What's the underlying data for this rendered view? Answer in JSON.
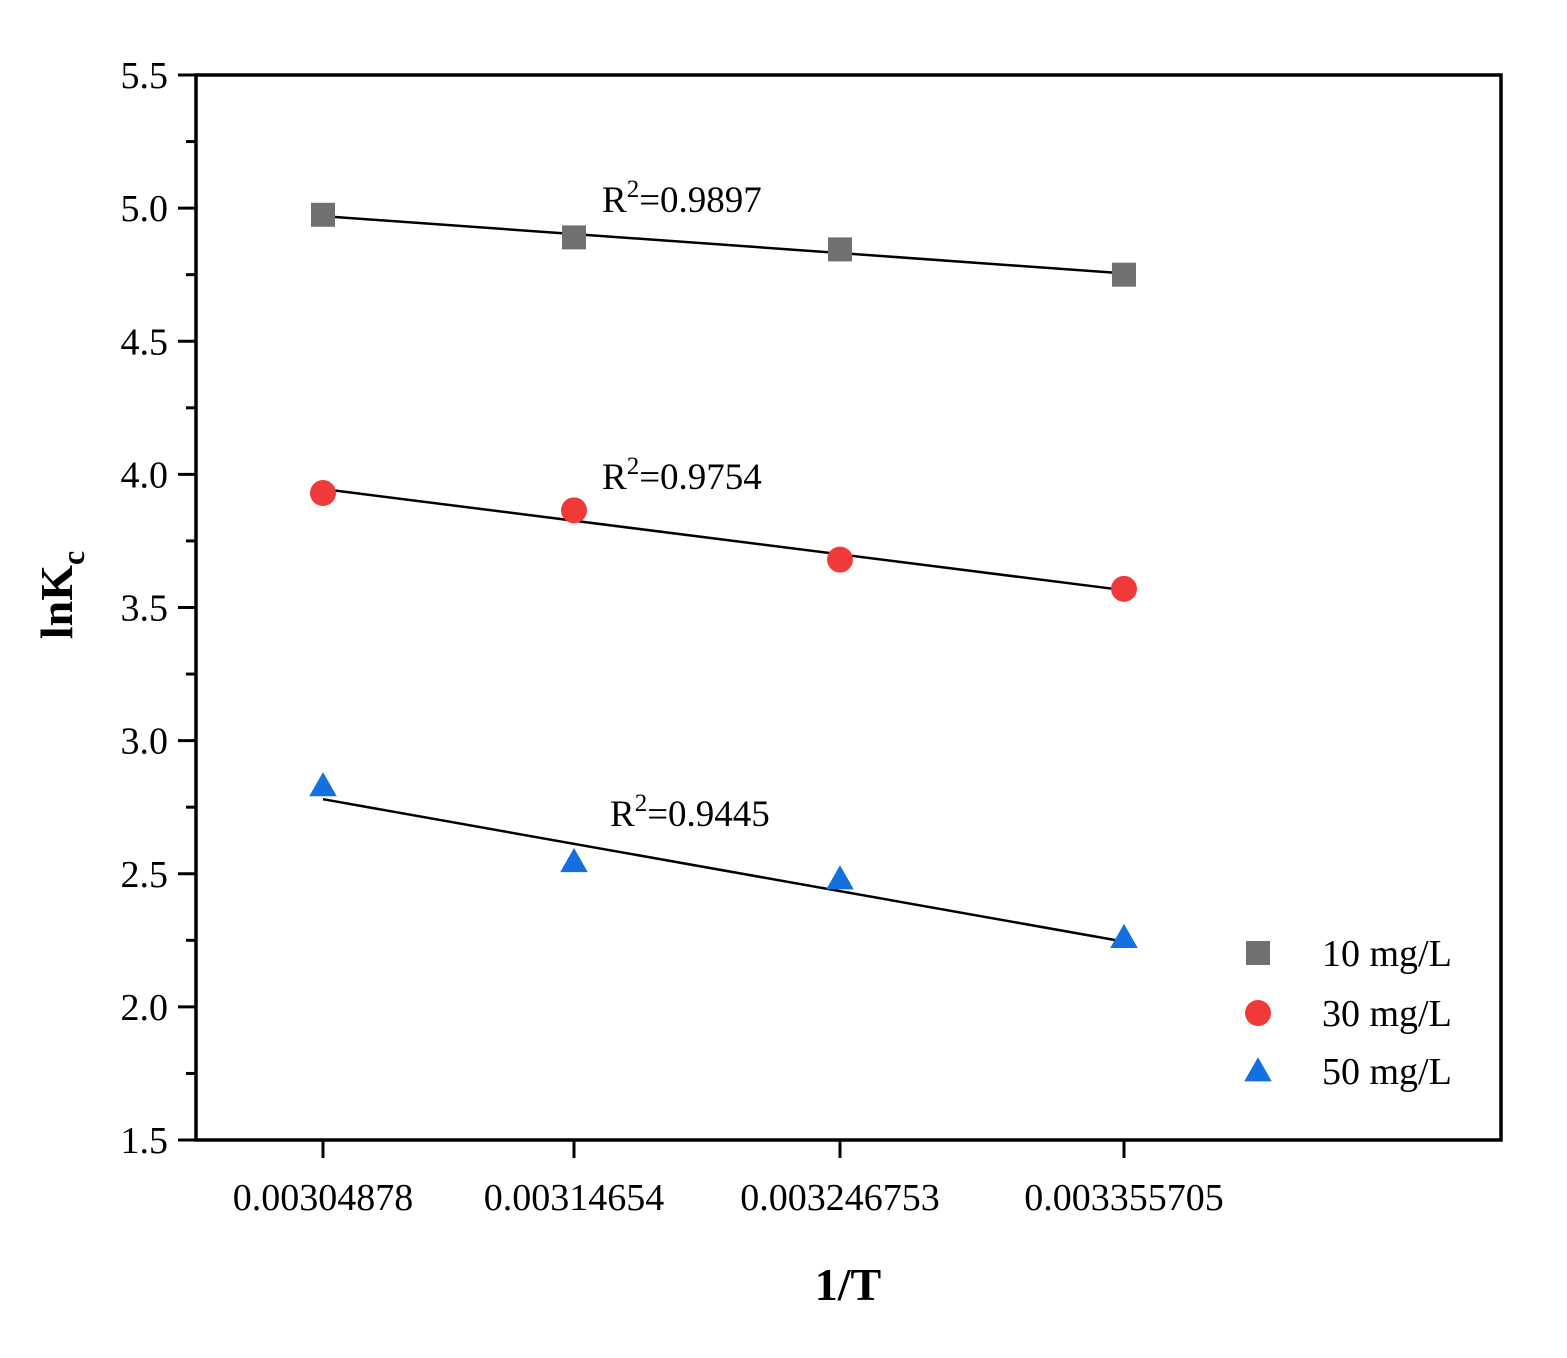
{
  "chart_data": {
    "type": "scatter",
    "title": "",
    "xlabel": "1/T",
    "ylabel": "lnK",
    "ylabel_subscript": "c",
    "ylabel_display": "lnKc",
    "ylim": [
      1.5,
      5.5
    ],
    "ytick_labels": [
      "1.5",
      "2.0",
      "2.5",
      "3.0",
      "3.5",
      "4.0",
      "4.5",
      "5.0",
      "5.5"
    ],
    "x_categories": [
      "0.00304878",
      "0.00314654",
      "0.003246753",
      "0.003355705"
    ],
    "legend_position": "bottom-right",
    "series": [
      {
        "name": "10 mg/L",
        "marker": "square",
        "color": "#707070",
        "values": [
          4.975,
          4.89,
          4.845,
          4.75
        ],
        "fit": [
          4.97,
          4.755
        ],
        "r2_prefix": "R",
        "r2_value": "=0.9897"
      },
      {
        "name": "30 mg/L",
        "marker": "circle",
        "color": "#f03a3a",
        "values": [
          3.93,
          3.865,
          3.68,
          3.57
        ],
        "fit": [
          3.945,
          3.565
        ],
        "r2_prefix": "R",
        "r2_value": "=0.9754"
      },
      {
        "name": "50 mg/L",
        "marker": "triangle",
        "color": "#1470e0",
        "values": [
          2.83,
          2.545,
          2.48,
          2.26
        ],
        "fit": [
          2.78,
          2.245
        ],
        "r2_prefix": "R",
        "r2_value": "=0.9445"
      }
    ]
  }
}
